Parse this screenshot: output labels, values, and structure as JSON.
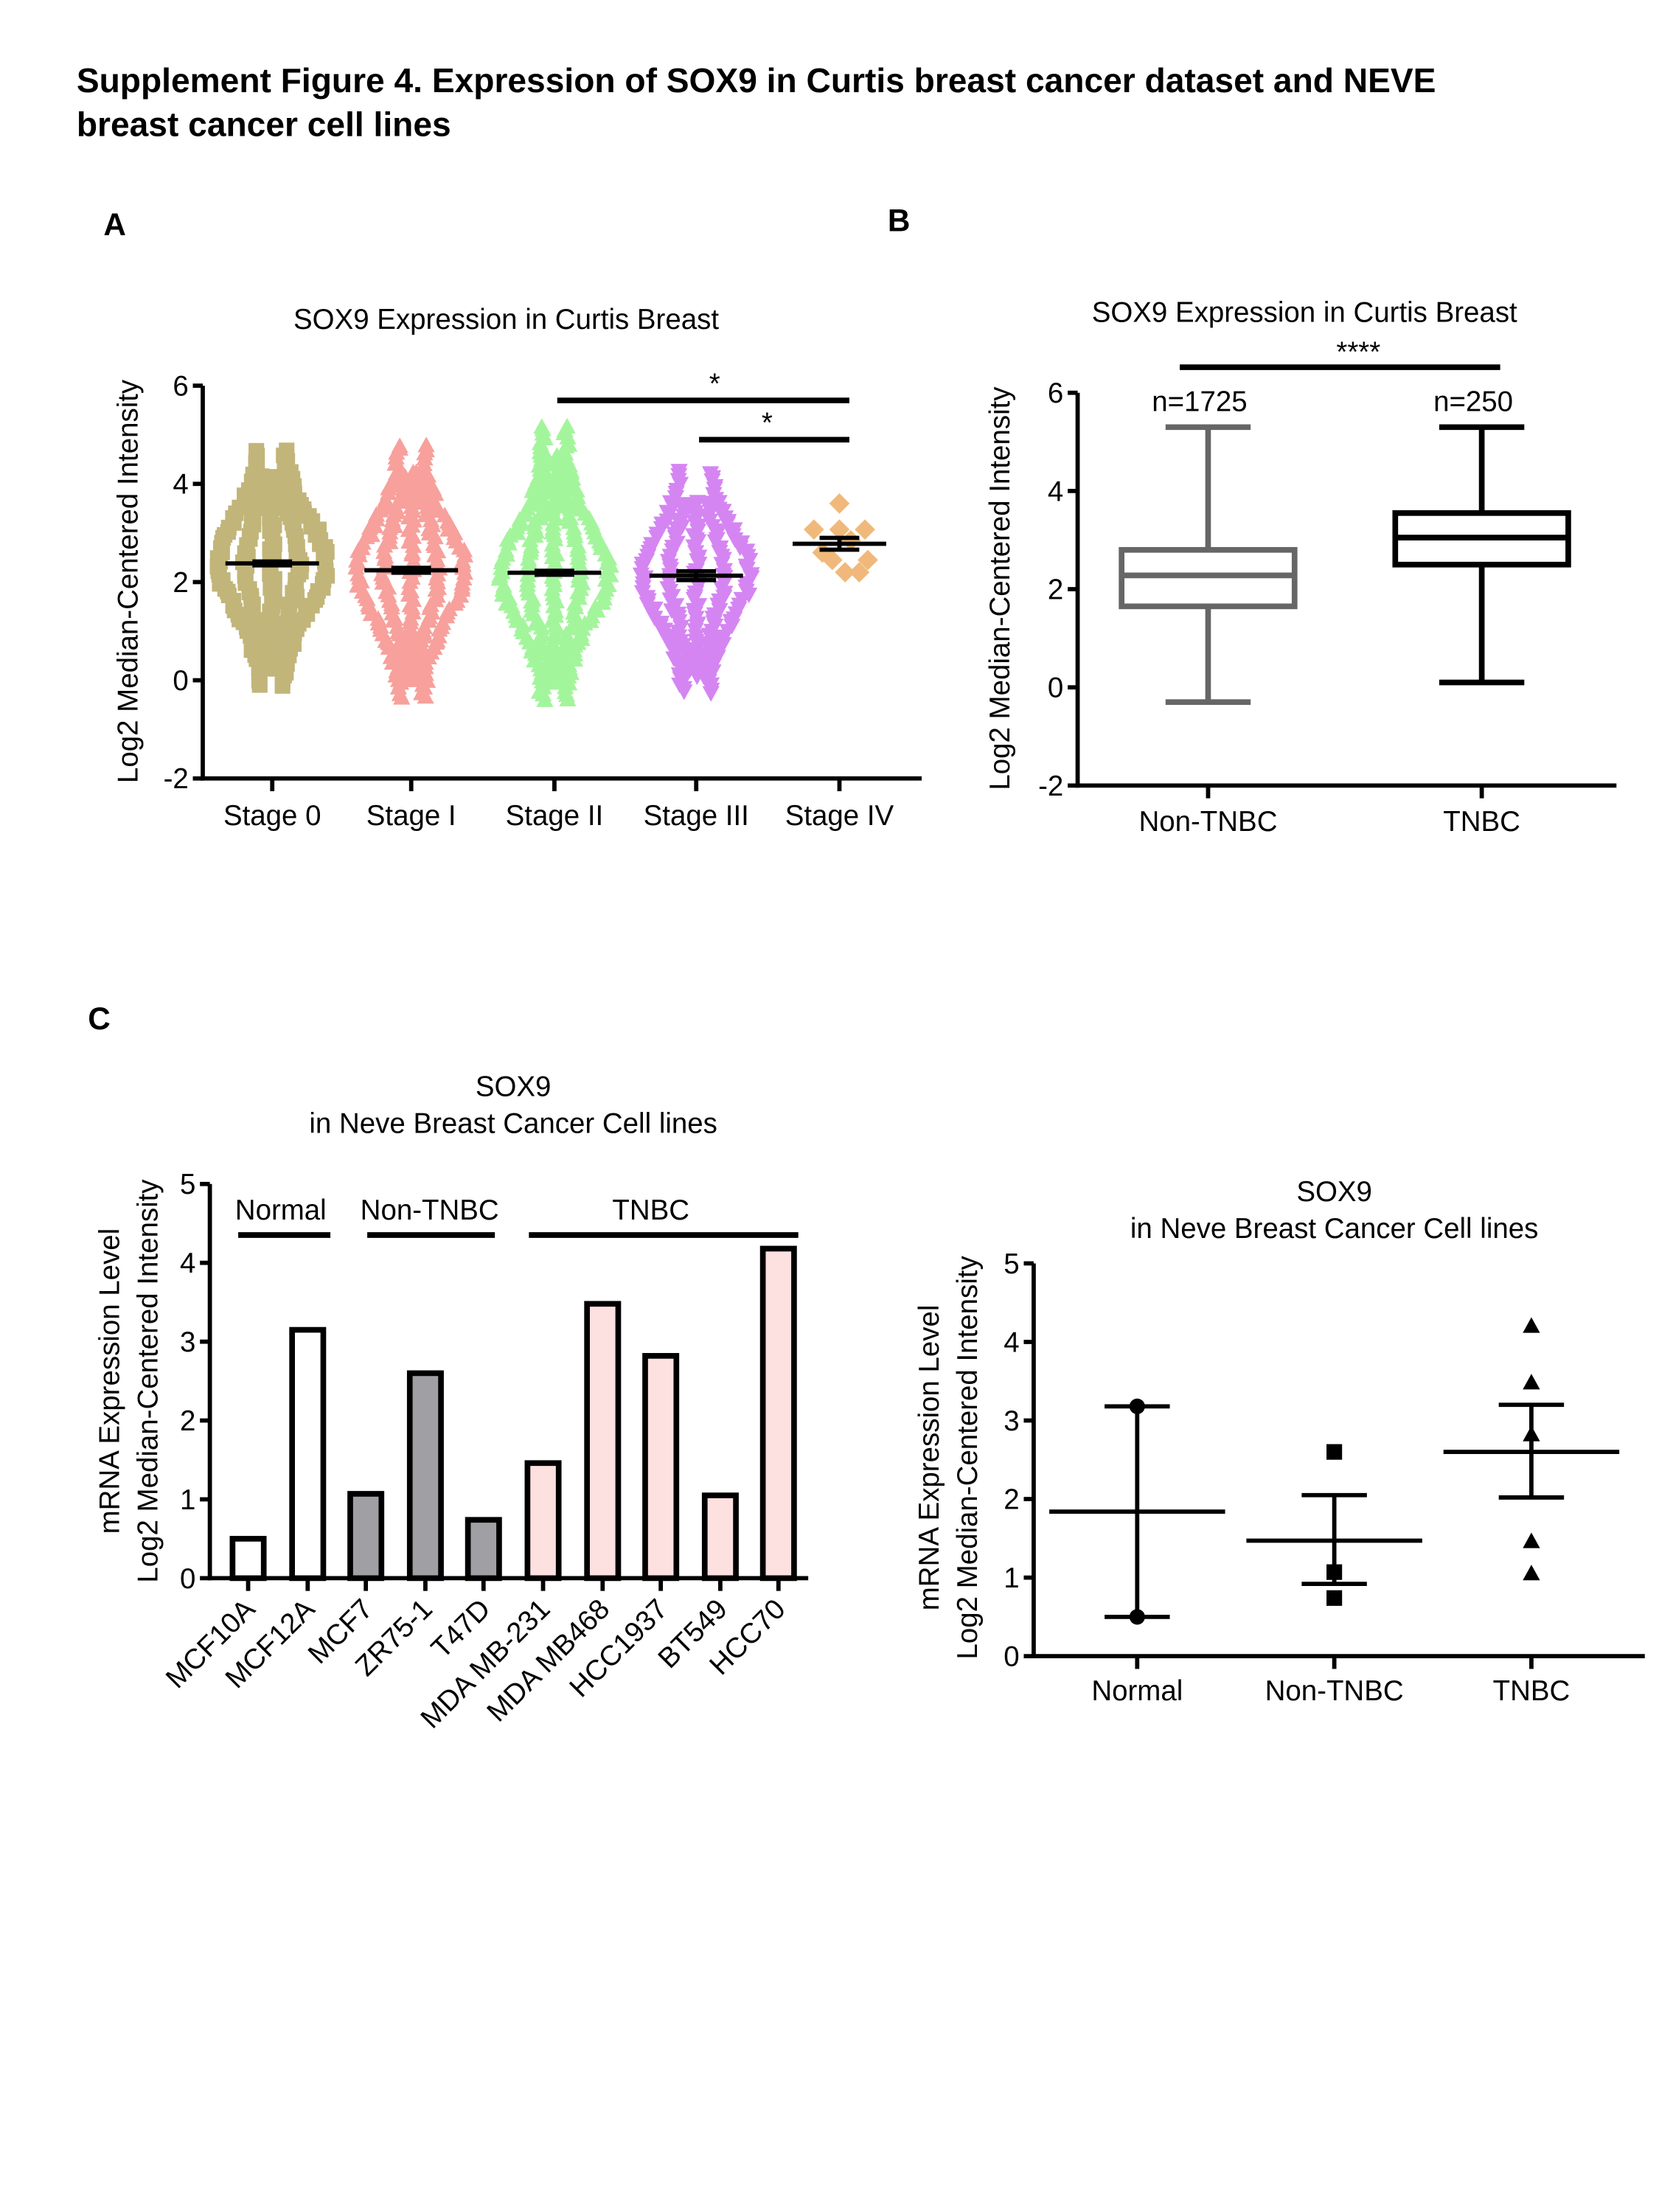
{
  "figure": {
    "title_line1": "Supplement Figure 4. Expression of SOX9 in Curtis breast cancer dataset and NEVE",
    "title_line2": "breast cancer cell lines",
    "panel_a": "A",
    "panel_b": "B",
    "panel_c": "C"
  },
  "chart_data": [
    {
      "type": "scatter",
      "title": "SOX9 Expression in Curtis Breast",
      "xlabel": "",
      "ylabel": "Log2 Median-Centered Intensity",
      "ylim": [
        -2,
        6
      ],
      "yticks": [
        "-2",
        "0",
        "2",
        "4",
        "6"
      ],
      "categories": [
        "Stage 0",
        "Stage I",
        "Stage II",
        "Stage III",
        "Stage IV"
      ],
      "colors": [
        "#c2b57a",
        "#f7a09c",
        "#a3f59c",
        "#d585f2",
        "#f0b97b"
      ],
      "markers": [
        "square",
        "triangle-up",
        "triangle-up",
        "triangle-down",
        "diamond"
      ],
      "groups": [
        {
          "mean": 2.38,
          "sem": 0.04,
          "min": -0.1,
          "max": 4.75
        },
        {
          "mean": 2.24,
          "sem": 0.05,
          "min": -0.35,
          "max": 4.85
        },
        {
          "mean": 2.19,
          "sem": 0.04,
          "min": -0.4,
          "max": 5.2
        },
        {
          "mean": 2.13,
          "sem": 0.09,
          "min": -0.25,
          "max": 4.3
        },
        {
          "mean": 2.78,
          "sem": 0.12,
          "min": 2.2,
          "max": 3.6,
          "points": [
            3.6,
            3.07,
            3.07,
            3.07,
            2.85,
            2.6,
            2.45,
            2.45,
            2.2,
            2.2
          ]
        }
      ],
      "significance": [
        {
          "from": "Stage II",
          "to": "Stage IV",
          "label": "*",
          "y": 5.7
        },
        {
          "from": "Stage III",
          "to": "Stage IV",
          "label": "*",
          "y": 4.9
        }
      ]
    },
    {
      "type": "box",
      "title": "SOX9 Expression in Curtis Breast",
      "ylabel": "Log2 Median-Centered Intensity",
      "ylim": [
        -2,
        6
      ],
      "yticks": [
        "-2",
        "0",
        "2",
        "4",
        "6"
      ],
      "categories": [
        "Non-TNBC",
        "TNBC"
      ],
      "colors": [
        "#666666",
        "#000000"
      ],
      "boxes": [
        {
          "n_label": "n=1725",
          "min": -0.3,
          "q1": 1.65,
          "median": 2.28,
          "q3": 2.8,
          "max": 5.3
        },
        {
          "n_label": "n=250",
          "min": 0.1,
          "q1": 2.5,
          "median": 3.05,
          "q3": 3.55,
          "max": 5.3
        }
      ],
      "significance": {
        "label": "****",
        "y": 6.6
      }
    },
    {
      "type": "bar",
      "title_line1": "SOX9",
      "title_line2": "in Neve Breast Cancer Cell lines",
      "ylabel_line1": "mRNA Expression Level",
      "ylabel_line2": "Log2 Median-Centered Intensity",
      "ylim": [
        0,
        5
      ],
      "yticks": [
        "0",
        "1",
        "2",
        "3",
        "4",
        "5"
      ],
      "categories": [
        "MCF10A",
        "MCF12A",
        "MCF7",
        "ZR75-1",
        "T47D",
        "MDA MB-231",
        "MDA MB468",
        "HCC1937",
        "BT549",
        "HCC70"
      ],
      "values": [
        0.5,
        3.15,
        1.07,
        2.6,
        0.74,
        1.46,
        3.48,
        2.82,
        1.05,
        4.18
      ],
      "groups": [
        {
          "label": "Normal",
          "members": [
            0,
            1
          ],
          "fill": "#ffffff"
        },
        {
          "label": "Non-TNBC",
          "members": [
            2,
            3,
            4
          ],
          "fill": "#a0a0a4"
        },
        {
          "label": "TNBC",
          "members": [
            5,
            6,
            7,
            8,
            9
          ],
          "fill": "#fde0e0"
        }
      ]
    },
    {
      "type": "scatter",
      "title_line1": "SOX9",
      "title_line2": "in Neve Breast Cancer Cell lines",
      "ylabel_line1": "mRNA Expression Level",
      "ylabel_line2": "Log2 Median-Centered Intensity",
      "ylim": [
        0,
        5
      ],
      "yticks": [
        "0",
        "1",
        "2",
        "3",
        "4",
        "5"
      ],
      "categories": [
        "Normal",
        "Non-TNBC",
        "TNBC"
      ],
      "markers": [
        "circle",
        "square",
        "triangle-up"
      ],
      "groups": [
        {
          "points": [
            3.18,
            0.5
          ],
          "mean": 1.84,
          "err_low": 0.5,
          "err_high": 3.18
        },
        {
          "points": [
            2.6,
            1.07,
            0.74
          ],
          "mean": 1.47,
          "err_low": 0.92,
          "err_high": 2.05
        },
        {
          "points": [
            4.2,
            3.48,
            2.82,
            1.46,
            1.05
          ],
          "mean": 2.6,
          "err_low": 2.02,
          "err_high": 3.2
        }
      ]
    }
  ]
}
